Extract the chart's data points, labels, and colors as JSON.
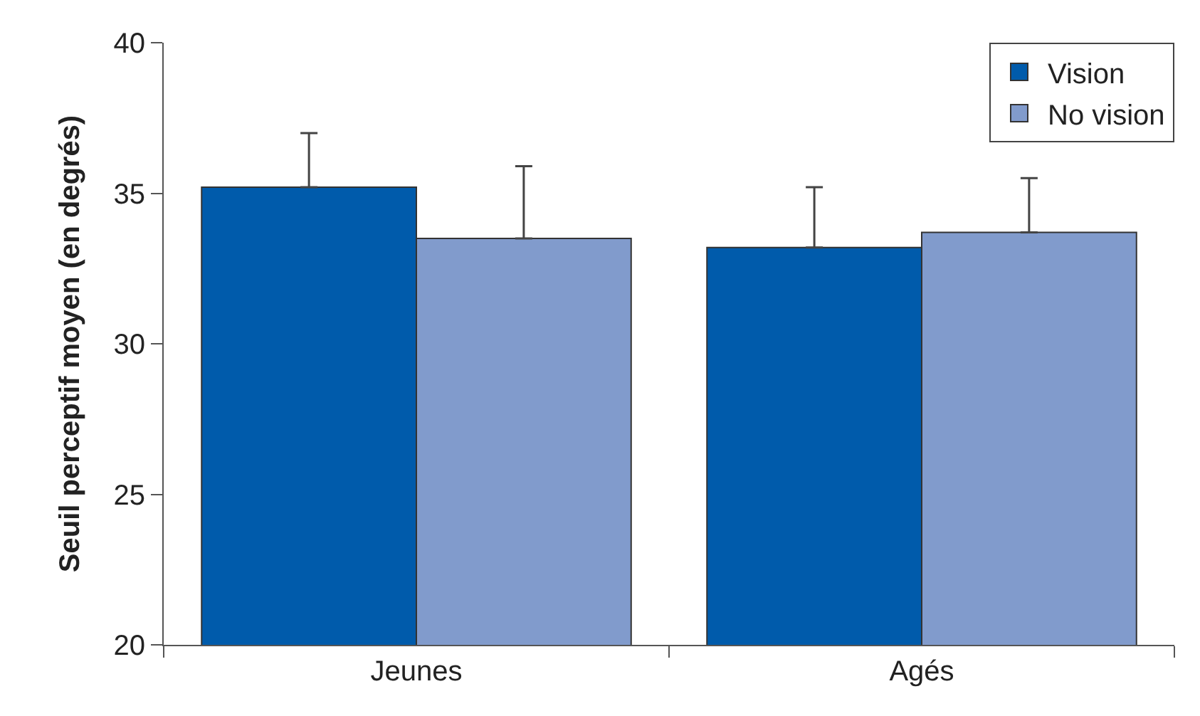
{
  "chart_data": {
    "type": "bar",
    "ylabel": "Seuil perceptif moyen (en degrés)",
    "categories": [
      "Jeunes",
      "Agés"
    ],
    "series": [
      {
        "name": "Vision",
        "color": "#005bab",
        "values": [
          35.2,
          33.2
        ],
        "errors": [
          [
            35.2,
            37.0
          ],
          [
            33.2,
            35.2
          ]
        ]
      },
      {
        "name": "No vision",
        "color": "#819bcc",
        "values": [
          33.5,
          33.7
        ],
        "errors": [
          [
            33.5,
            35.9
          ],
          [
            33.7,
            35.5
          ]
        ]
      }
    ],
    "ylim": [
      20,
      40
    ],
    "yticks": [
      20,
      25,
      30,
      35,
      40
    ],
    "grid": false,
    "legend": "top right"
  }
}
